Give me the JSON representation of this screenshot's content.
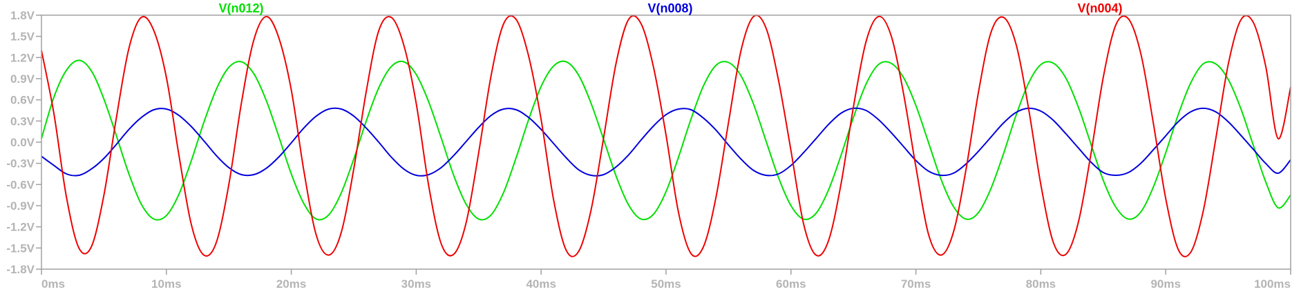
{
  "chart_data": {
    "type": "line",
    "title": "",
    "xlabel": "",
    "ylabel": "",
    "xlim": [
      0,
      100
    ],
    "ylim": [
      -1.8,
      1.8
    ],
    "x_ticks": [
      0,
      10,
      20,
      30,
      40,
      50,
      60,
      70,
      80,
      90,
      100
    ],
    "x_tick_labels": [
      "0ms",
      "10ms",
      "20ms",
      "30ms",
      "40ms",
      "50ms",
      "60ms",
      "70ms",
      "80ms",
      "90ms",
      "100ms"
    ],
    "y_ticks": [
      1.8,
      1.5,
      1.2,
      0.9,
      0.6,
      0.3,
      0.0,
      -0.3,
      -0.6,
      -0.9,
      -1.2,
      -1.5,
      -1.8
    ],
    "y_tick_labels": [
      "1.8V",
      "1.5V",
      "1.2V",
      "0.9V",
      "0.6V",
      "0.3V",
      "0.0V",
      "-0.3V",
      "-0.6V",
      "-0.9V",
      "-1.2V",
      "-1.5V",
      "-1.8V"
    ],
    "grid": false,
    "legend_position": "top",
    "series": [
      {
        "name": "V(n012)",
        "color": "#00e000",
        "x": [
          0,
          1,
          2,
          3,
          4,
          5,
          6,
          7,
          8,
          9,
          10,
          11,
          12,
          13,
          14,
          15,
          16,
          17,
          18,
          19,
          20,
          21,
          22,
          23,
          24,
          25,
          26,
          27,
          28,
          29,
          30,
          31,
          32,
          33,
          34,
          35,
          36,
          37,
          38,
          39,
          40,
          41,
          42,
          43,
          44,
          45,
          46,
          47,
          48,
          49,
          50,
          51,
          52,
          53,
          54,
          55,
          56,
          57,
          58,
          59,
          60,
          61,
          62,
          63,
          64,
          65,
          66,
          67,
          68,
          69,
          70,
          71,
          72,
          73,
          74,
          75,
          76,
          77,
          78,
          79,
          80,
          81,
          82,
          83,
          84,
          85,
          86,
          87,
          88,
          89,
          90,
          91,
          92,
          93,
          94,
          95,
          96,
          97,
          98,
          99,
          100
        ],
        "y": [
          0.05,
          0.64,
          1.02,
          1.16,
          1.01,
          0.61,
          0.09,
          -0.45,
          -0.88,
          -1.09,
          -1.04,
          -0.74,
          -0.26,
          0.28,
          0.75,
          1.06,
          1.14,
          0.97,
          0.59,
          0.08,
          -0.45,
          -0.87,
          -1.09,
          -1.03,
          -0.72,
          -0.24,
          0.3,
          0.77,
          1.07,
          1.14,
          0.96,
          0.57,
          0.06,
          -0.47,
          -0.88,
          -1.09,
          -1.03,
          -0.71,
          -0.22,
          0.32,
          0.79,
          1.08,
          1.14,
          0.95,
          0.55,
          0.04,
          -0.48,
          -0.89,
          -1.09,
          -1.02,
          -0.7,
          -0.21,
          0.33,
          0.8,
          1.09,
          1.13,
          0.94,
          0.54,
          0.02,
          -0.5,
          -0.9,
          -1.09,
          -1.01,
          -0.68,
          -0.19,
          0.35,
          0.82,
          1.1,
          1.12,
          0.92,
          0.52,
          0.0,
          -0.52,
          -0.91,
          -1.09,
          -1.0,
          -0.66,
          -0.17,
          0.37,
          0.83,
          1.1,
          1.12,
          0.91,
          0.5,
          -0.02,
          -0.54,
          -0.92,
          -1.09,
          -0.99,
          -0.64,
          -0.15,
          0.39,
          0.84,
          1.11,
          1.11,
          0.89,
          0.48,
          -0.04,
          -0.56,
          -0.93,
          -0.75
        ]
      },
      {
        "name": "V(n008)",
        "color": "#0000dd",
        "x": [
          0,
          1,
          2,
          3,
          4,
          5,
          6,
          7,
          8,
          9,
          10,
          11,
          12,
          13,
          14,
          15,
          16,
          17,
          18,
          19,
          20,
          21,
          22,
          23,
          24,
          25,
          26,
          27,
          28,
          29,
          30,
          31,
          32,
          33,
          34,
          35,
          36,
          37,
          38,
          39,
          40,
          41,
          42,
          43,
          44,
          45,
          46,
          47,
          48,
          49,
          50,
          51,
          52,
          53,
          54,
          55,
          56,
          57,
          58,
          59,
          60,
          61,
          62,
          63,
          64,
          65,
          66,
          67,
          68,
          69,
          70,
          71,
          72,
          73,
          74,
          75,
          76,
          77,
          78,
          79,
          80,
          81,
          82,
          83,
          84,
          85,
          86,
          87,
          88,
          89,
          90,
          91,
          92,
          93,
          94,
          95,
          96,
          97,
          98,
          99,
          100
        ],
        "y": [
          -0.2,
          -0.33,
          -0.45,
          -0.47,
          -0.38,
          -0.23,
          -0.03,
          0.18,
          0.35,
          0.46,
          0.47,
          0.38,
          0.22,
          0.02,
          -0.19,
          -0.36,
          -0.46,
          -0.46,
          -0.37,
          -0.21,
          -0.01,
          0.2,
          0.37,
          0.47,
          0.47,
          0.37,
          0.2,
          0.0,
          -0.21,
          -0.38,
          -0.47,
          -0.46,
          -0.36,
          -0.19,
          0.01,
          0.21,
          0.38,
          0.47,
          0.46,
          0.35,
          0.18,
          -0.02,
          -0.22,
          -0.39,
          -0.47,
          -0.46,
          -0.35,
          -0.18,
          0.03,
          0.23,
          0.39,
          0.47,
          0.46,
          0.34,
          0.17,
          -0.04,
          -0.24,
          -0.4,
          -0.47,
          -0.45,
          -0.33,
          -0.15,
          0.05,
          0.25,
          0.41,
          0.48,
          0.45,
          0.32,
          0.14,
          -0.06,
          -0.26,
          -0.41,
          -0.47,
          -0.44,
          -0.31,
          -0.13,
          0.07,
          0.27,
          0.42,
          0.48,
          0.44,
          0.31,
          0.12,
          -0.08,
          -0.28,
          -0.43,
          -0.47,
          -0.43,
          -0.3,
          -0.11,
          0.09,
          0.29,
          0.43,
          0.48,
          0.43,
          0.29,
          0.1,
          -0.1,
          -0.3,
          -0.44,
          -0.25
        ]
      },
      {
        "name": "V(n004)",
        "color": "#ee0000",
        "x": [
          0,
          1,
          2,
          3,
          4,
          5,
          6,
          7,
          8,
          9,
          10,
          11,
          12,
          13,
          14,
          15,
          16,
          17,
          18,
          19,
          20,
          21,
          22,
          23,
          24,
          25,
          26,
          27,
          28,
          29,
          30,
          31,
          32,
          33,
          34,
          35,
          36,
          37,
          38,
          39,
          40,
          41,
          42,
          43,
          44,
          45,
          46,
          47,
          48,
          49,
          50,
          51,
          52,
          53,
          54,
          55,
          56,
          57,
          58,
          59,
          60,
          61,
          62,
          63,
          64,
          65,
          66,
          67,
          68,
          69,
          70,
          71,
          72,
          73,
          74,
          75,
          76,
          77,
          78,
          79,
          80,
          81,
          82,
          83,
          84,
          85,
          86,
          87,
          88,
          89,
          90,
          91,
          92,
          93,
          94,
          95,
          96,
          97,
          98,
          99,
          100
        ],
        "y": [
          1.3,
          0.4,
          -0.78,
          -1.5,
          -1.48,
          -0.75,
          0.35,
          1.33,
          1.77,
          1.58,
          0.92,
          -0.18,
          -1.17,
          -1.6,
          -1.42,
          -0.6,
          0.55,
          1.45,
          1.78,
          1.48,
          0.74,
          -0.4,
          -1.32,
          -1.6,
          -1.28,
          -0.38,
          0.72,
          1.58,
          1.77,
          1.38,
          0.55,
          -0.62,
          -1.44,
          -1.59,
          -1.14,
          -0.15,
          0.95,
          1.68,
          1.74,
          1.22,
          0.32,
          -0.82,
          -1.53,
          -1.55,
          -0.96,
          0.06,
          1.12,
          1.74,
          1.68,
          1.06,
          0.1,
          -1.0,
          -1.58,
          -1.48,
          -0.78,
          0.28,
          1.3,
          1.78,
          1.62,
          0.88,
          -0.12,
          -1.15,
          -1.6,
          -1.4,
          -0.6,
          0.5,
          1.42,
          1.78,
          1.52,
          0.7,
          -0.35,
          -1.3,
          -1.6,
          -1.28,
          -0.4,
          0.7,
          1.55,
          1.77,
          1.4,
          0.5,
          -0.6,
          -1.42,
          -1.59,
          -1.14,
          -0.18,
          0.92,
          1.66,
          1.75,
          1.26,
          0.28,
          -0.8,
          -1.52,
          -1.56,
          -0.98,
          0.04,
          1.1,
          1.73,
          1.7,
          1.08,
          0.05,
          0.78
        ]
      }
    ]
  }
}
